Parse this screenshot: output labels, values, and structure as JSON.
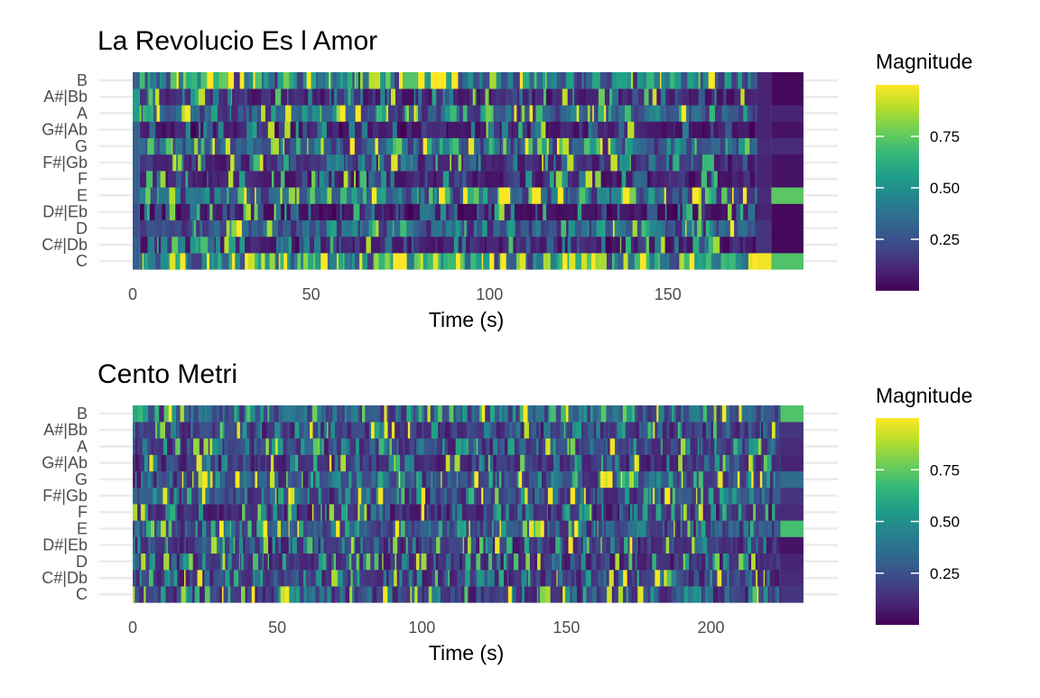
{
  "chart_data": [
    {
      "type": "heatmap",
      "title": "La Revolucio Es l Amor",
      "xlabel": "Time (s)",
      "ylabel": "",
      "xlim": [
        0,
        188
      ],
      "x_ticks": [
        0,
        50,
        100,
        150
      ],
      "y_categories": [
        "C",
        "C#|Db",
        "D",
        "D#|Eb",
        "E",
        "F",
        "F#|Gb",
        "G",
        "G#|Ab",
        "A",
        "A#|Bb",
        "B"
      ],
      "legend": {
        "title": "Magnitude",
        "ticks": [
          0.25,
          0.5,
          0.75
        ],
        "range": [
          0,
          1
        ],
        "position": "right"
      },
      "colormap": [
        "#440154",
        "#482878",
        "#3e4a89",
        "#31688e",
        "#26828e",
        "#1f9e89",
        "#35b779",
        "#6ece58",
        "#b5de2b",
        "#fde725"
      ],
      "grid": true,
      "sections": [
        {
          "start": 0,
          "end": 2,
          "levels": [
            0.3,
            0.3,
            0.25,
            0.25,
            0.3,
            0.3,
            0.3,
            0.3,
            0.3,
            0.55,
            0.55,
            0.3
          ],
          "noise": 0
        },
        {
          "start": 2,
          "end": 175,
          "levels": [
            0.62,
            0.12,
            0.38,
            0.08,
            0.42,
            0.12,
            0.18,
            0.38,
            0.12,
            0.35,
            0.15,
            0.5
          ],
          "noise": 1,
          "seed": 11
        },
        {
          "start": 175,
          "end": 179,
          "levels": [
            0.98,
            0.15,
            0.15,
            0.1,
            0.12,
            0.1,
            0.1,
            0.12,
            0.1,
            0.1,
            0.1,
            0.1
          ],
          "noise": 0
        },
        {
          "start": 179,
          "end": 188,
          "levels": [
            0.72,
            0.02,
            0.02,
            0.02,
            0.74,
            0.05,
            0.05,
            0.12,
            0.05,
            0.1,
            0.02,
            0.02
          ],
          "noise": 0
        }
      ]
    },
    {
      "type": "heatmap",
      "title": "Cento Metri",
      "xlabel": "Time (s)",
      "ylabel": "",
      "xlim": [
        0,
        232
      ],
      "x_ticks": [
        0,
        50,
        100,
        150,
        200
      ],
      "y_categories": [
        "C",
        "C#|Db",
        "D",
        "D#|Eb",
        "E",
        "F",
        "F#|Gb",
        "G",
        "G#|Ab",
        "A",
        "A#|Bb",
        "B"
      ],
      "legend": {
        "title": "Magnitude",
        "ticks": [
          0.25,
          0.5,
          0.75
        ],
        "range": [
          0,
          1
        ],
        "position": "right"
      },
      "colormap": [
        "#440154",
        "#482878",
        "#3e4a89",
        "#31688e",
        "#26828e",
        "#1f9e89",
        "#35b779",
        "#6ece58",
        "#b5de2b",
        "#fde725"
      ],
      "grid": true,
      "sections": [
        {
          "start": 0,
          "end": 224,
          "levels": [
            0.25,
            0.25,
            0.18,
            0.2,
            0.32,
            0.18,
            0.3,
            0.3,
            0.2,
            0.25,
            0.22,
            0.4
          ],
          "noise": 1,
          "seed": 29
        },
        {
          "start": 224,
          "end": 232,
          "levels": [
            0.15,
            0.12,
            0.1,
            0.05,
            0.7,
            0.12,
            0.15,
            0.35,
            0.1,
            0.12,
            0.15,
            0.72
          ],
          "noise": 0
        }
      ]
    }
  ]
}
